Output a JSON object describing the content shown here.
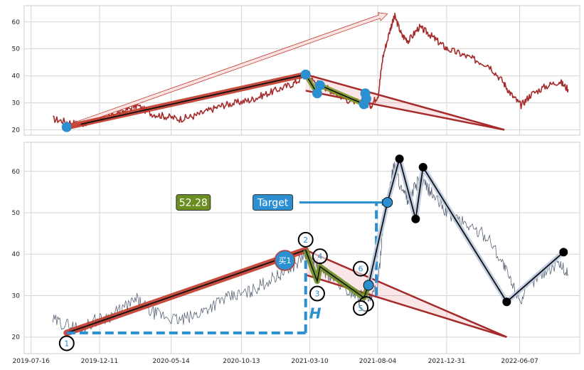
{
  "chart_data": [
    {
      "type": "line",
      "panel": "top",
      "ylim": [
        18,
        66
      ],
      "yticks": [
        20,
        30,
        40,
        50,
        60
      ],
      "grid": true,
      "series": [
        {
          "color": "#a52a2a",
          "x": [
            "2019-09-01",
            "2019-10-01",
            "2019-11-01",
            "2019-12-01",
            "2020-01-01",
            "2020-02-01",
            "2020-03-01",
            "2020-04-01",
            "2020-05-01",
            "2020-06-01",
            "2020-07-01",
            "2020-08-01",
            "2020-09-01",
            "2020-10-01",
            "2020-11-01",
            "2020-12-01",
            "2021-01-01",
            "2021-02-01",
            "2021-03-01",
            "2021-03-20",
            "2021-04-10",
            "2021-05-01",
            "2021-06-01",
            "2021-07-01",
            "2021-07-20",
            "2021-08-05",
            "2021-08-15",
            "2021-09-01",
            "2021-09-10",
            "2021-09-25",
            "2021-10-10",
            "2021-11-01",
            "2021-11-20",
            "2021-12-10",
            "2022-01-01",
            "2022-02-01",
            "2022-03-01",
            "2022-04-01",
            "2022-05-01",
            "2022-05-20",
            "2022-06-10",
            "2022-07-01",
            "2022-08-01",
            "2022-09-01",
            "2022-09-20"
          ],
          "y": [
            24,
            23,
            22,
            24,
            25,
            27,
            29,
            26,
            25,
            24,
            25,
            27,
            29,
            30,
            31,
            33,
            35,
            37,
            40,
            38,
            36,
            34,
            31,
            30,
            29,
            33,
            47,
            58,
            62,
            55,
            53,
            58,
            56,
            53,
            50,
            48,
            46,
            44,
            38,
            33,
            29,
            33,
            36,
            38,
            35
          ]
        }
      ],
      "annotations": {
        "arrow": {
          "from": [
            "2019-10-01",
            21
          ],
          "to": [
            "2021-08-25",
            63
          ]
        },
        "trend_lines": [
          {
            "from": [
              "2019-10-01",
              21
            ],
            "to": [
              "2021-03-01",
              40.5
            ],
            "color": "#c0392b"
          },
          {
            "from": [
              "2021-03-01",
              40.5
            ],
            "to": [
              "2022-05-05",
              20
            ],
            "color": "#a52a2a"
          },
          {
            "from": [
              "2021-03-01",
              34.5
            ],
            "to": [
              "2022-05-05",
              20
            ],
            "color": "#a52a2a"
          }
        ],
        "points": [
          {
            "x": "2019-10-01",
            "y": 21
          },
          {
            "x": "2021-03-01",
            "y": 40.5
          },
          {
            "x": "2021-03-26",
            "y": 33.5
          },
          {
            "x": "2021-04-01",
            "y": 36.5
          },
          {
            "x": "2021-07-05",
            "y": 29.5
          },
          {
            "x": "2021-07-08",
            "y": 33.5
          },
          {
            "x": "2021-07-10",
            "y": 31.5
          }
        ],
        "wave_path": [
          [
            "2021-03-01",
            40.5
          ],
          [
            "2021-03-26",
            33.5
          ],
          [
            "2021-04-01",
            36.5
          ],
          [
            "2021-07-05",
            29.5
          ],
          [
            "2021-07-10",
            33.5
          ]
        ]
      }
    },
    {
      "type": "line",
      "panel": "bottom",
      "ylim": [
        16,
        67
      ],
      "yticks": [
        20,
        30,
        40,
        50,
        60
      ],
      "xticks": [
        "2019-07-16",
        "2019-12-11",
        "2020-05-14",
        "2020-10-13",
        "2021-03-10",
        "2021-08-04",
        "2021-12-31",
        "2022-06-07"
      ],
      "grid": true,
      "series": [
        {
          "color": "#5a6478",
          "x": [
            "2019-09-01",
            "2019-10-01",
            "2019-11-01",
            "2019-12-01",
            "2020-01-01",
            "2020-02-01",
            "2020-03-01",
            "2020-04-01",
            "2020-05-01",
            "2020-06-01",
            "2020-07-01",
            "2020-08-01",
            "2020-09-01",
            "2020-10-01",
            "2020-11-01",
            "2020-12-01",
            "2021-01-01",
            "2021-02-01",
            "2021-03-01",
            "2021-03-20",
            "2021-04-10",
            "2021-05-01",
            "2021-06-01",
            "2021-07-01",
            "2021-07-20",
            "2021-08-05",
            "2021-08-15",
            "2021-09-01",
            "2021-09-10",
            "2021-09-25",
            "2021-10-10",
            "2021-11-01",
            "2021-11-20",
            "2021-12-10",
            "2022-01-01",
            "2022-02-01",
            "2022-03-01",
            "2022-04-01",
            "2022-05-01",
            "2022-05-20",
            "2022-06-10",
            "2022-07-01",
            "2022-08-01",
            "2022-09-01",
            "2022-09-20"
          ],
          "y": [
            24,
            23,
            22,
            24,
            25,
            27,
            29,
            26,
            25,
            24,
            25,
            27,
            29,
            30,
            31,
            33,
            35,
            37,
            40,
            38,
            36,
            34,
            31,
            30,
            29,
            33,
            47,
            58,
            62,
            55,
            53,
            58,
            56,
            53,
            50,
            48,
            46,
            44,
            38,
            33,
            29,
            33,
            36,
            38,
            35
          ]
        }
      ],
      "annotations": {
        "trend_lines": [
          {
            "from": [
              "2019-10-01",
              21
            ],
            "to": [
              "2021-03-01",
              41
            ],
            "color": "#c0392b"
          },
          {
            "from": [
              "2021-03-01",
              41
            ],
            "to": [
              "2022-05-10",
              20
            ],
            "color": "#a52a2a"
          },
          {
            "from": [
              "2021-03-01",
              35
            ],
            "to": [
              "2022-05-10",
              20
            ],
            "color": "#a52a2a"
          }
        ],
        "wave_path": [
          [
            "2021-03-01",
            41
          ],
          [
            "2021-03-26",
            33.5
          ],
          [
            "2021-04-01",
            37
          ],
          [
            "2021-07-05",
            29.5
          ],
          [
            "2021-07-15",
            32.5
          ]
        ],
        "target_path": [
          [
            "2021-07-15",
            32.5
          ],
          [
            "2021-08-25",
            52.5
          ],
          [
            "2021-09-20",
            63
          ],
          [
            "2021-10-25",
            48.5
          ],
          [
            "2021-11-10",
            61
          ],
          [
            "2022-05-10",
            28.5
          ],
          [
            "2022-09-10",
            40.5
          ]
        ],
        "dashed_baseline": {
          "from": [
            "2019-10-01",
            21
          ],
          "to": [
            "2021-03-01",
            21
          ],
          "color": "#2b8fd0"
        },
        "dashed_vertical_h": {
          "x": "2021-03-01",
          "from": 21,
          "to": 41,
          "color": "#2b8fd0"
        },
        "dashed_vertical_target": {
          "x": "2021-08-01",
          "from": 30,
          "to": 52.5,
          "color": "#2b8fd0"
        },
        "target_arrow": {
          "from": [
            "2020-11-15",
            52.5
          ],
          "to": [
            "2021-08-25",
            52.5
          ]
        },
        "labeled_points": [
          {
            "label": "1",
            "x": "2019-10-01",
            "y": 18.5
          },
          {
            "label": "2",
            "x": "2021-03-01",
            "y": 43.5
          },
          {
            "label": "3",
            "x": "2021-03-26",
            "y": 30.5
          },
          {
            "label": "4",
            "x": "2021-04-01",
            "y": 39.5
          },
          {
            "label": "5",
            "x": "2021-06-28",
            "y": 27
          },
          {
            "label": "6",
            "x": "2021-06-28",
            "y": 36.5
          }
        ],
        "extra_circles": [
          {
            "x": "2021-07-10",
            "y": 28,
            "style": "black-outline"
          },
          {
            "x": "2021-07-15",
            "y": 32.5,
            "style": "blue-fill"
          },
          {
            "x": "2021-08-25",
            "y": 52.5,
            "style": "blue-fill"
          },
          {
            "x": "2021-09-20",
            "y": 63,
            "style": "black-fill"
          },
          {
            "x": "2021-10-25",
            "y": 48.5,
            "style": "black-fill"
          },
          {
            "x": "2021-11-10",
            "y": 61,
            "style": "black-fill"
          },
          {
            "x": "2022-05-10",
            "y": 28.5,
            "style": "black-fill"
          },
          {
            "x": "2022-09-10",
            "y": 40.5,
            "style": "black-fill"
          }
        ],
        "buy_marker": {
          "label": "买1",
          "x": "2021-01-15",
          "y": 38.5
        },
        "h_label": "H",
        "value_box": {
          "text": "52.28",
          "color": "#6b8e23"
        },
        "target_box": {
          "text": "Target",
          "color": "#2b8fd0"
        }
      }
    }
  ]
}
